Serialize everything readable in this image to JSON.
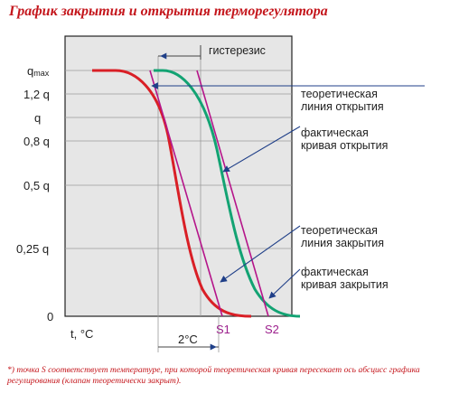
{
  "title": "График закрытия и открытия терморегулятора",
  "y_tick_labels": [
    "qmax",
    "1,2 q",
    "q",
    "0,8 q",
    "0,5 q",
    "0,25 q",
    "0"
  ],
  "x_axis_label": "t, °C",
  "hysteresis_label": "гистерезис",
  "interval_label": "2°C",
  "point_labels": [
    "S1",
    "S2"
  ],
  "legend": {
    "theoretical_opening": [
      "теоретическая",
      "линия открытия"
    ],
    "actual_opening": [
      "фактическая",
      "кривая открытия"
    ],
    "theoretical_closing": [
      "теоретическая",
      "линия закрытия"
    ],
    "actual_closing": [
      "фактическая",
      "кривая закрытия"
    ]
  },
  "colors": {
    "closing_curve": "#d91f26",
    "opening_curve": "#13a373",
    "theoretical_lines": "#b5158a",
    "point_labels": "#9c1f8c",
    "arrows": "#1f3f88",
    "title": "#c4161c",
    "plot_background": "#e6e6e6"
  },
  "footnote": "*) точка S соответствует температуре, при которой теоретическая кривая пересекает ось абсцисс графика регулирования (клапан теоретически закрыт)."
}
